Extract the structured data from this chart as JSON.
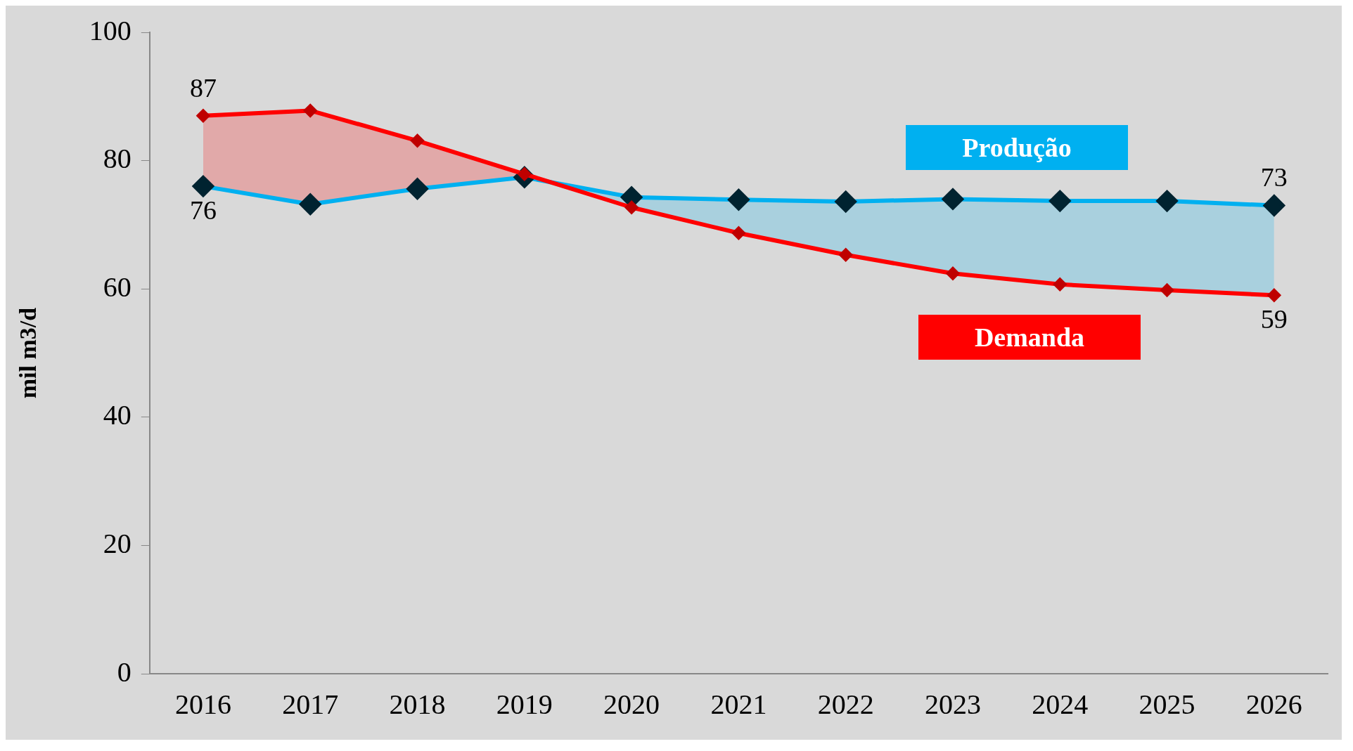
{
  "chart_data": {
    "type": "line",
    "ylabel": "mil m3/d",
    "categories": [
      "2016",
      "2017",
      "2018",
      "2019",
      "2020",
      "2021",
      "2022",
      "2023",
      "2024",
      "2025",
      "2026"
    ],
    "series": [
      {
        "name": "Produção",
        "color": "#00b0f0",
        "values": [
          76,
          73.2,
          75.6,
          77.4,
          74.3,
          73.9,
          73.6,
          74.0,
          73.7,
          73.7,
          73
        ],
        "value_labels": [
          "76",
          null,
          null,
          null,
          null,
          null,
          null,
          null,
          null,
          null,
          "73"
        ],
        "lower": [
          null,
          null,
          null,
          77.4,
          72.7,
          68.7,
          65.3,
          62.4,
          60.7,
          59.8,
          59
        ],
        "upper": [
          null,
          null,
          null,
          77.4,
          74.3,
          73.9,
          73.6,
          74.0,
          73.7,
          73.7,
          73
        ]
      },
      {
        "name": "Demanda",
        "color": "#ff0000",
        "values": [
          87,
          87.8,
          83.1,
          77.9,
          72.7,
          68.7,
          65.3,
          62.4,
          60.7,
          59.8,
          59
        ],
        "value_labels": [
          "87",
          null,
          null,
          null,
          null,
          null,
          null,
          null,
          null,
          null,
          "59"
        ],
        "lower": [
          76,
          73.2,
          75.6,
          77.4,
          null,
          null,
          null,
          null,
          null,
          null,
          null
        ],
        "upper": [
          87,
          87.8,
          83.1,
          77.9,
          null,
          null,
          null,
          null,
          null,
          null,
          null
        ]
      }
    ],
    "ylim": [
      0,
      100
    ],
    "yticks": [
      0,
      20,
      40,
      60,
      80,
      100
    ],
    "grid": false,
    "legend": false,
    "marker": "diamond",
    "line_style": "solid"
  }
}
